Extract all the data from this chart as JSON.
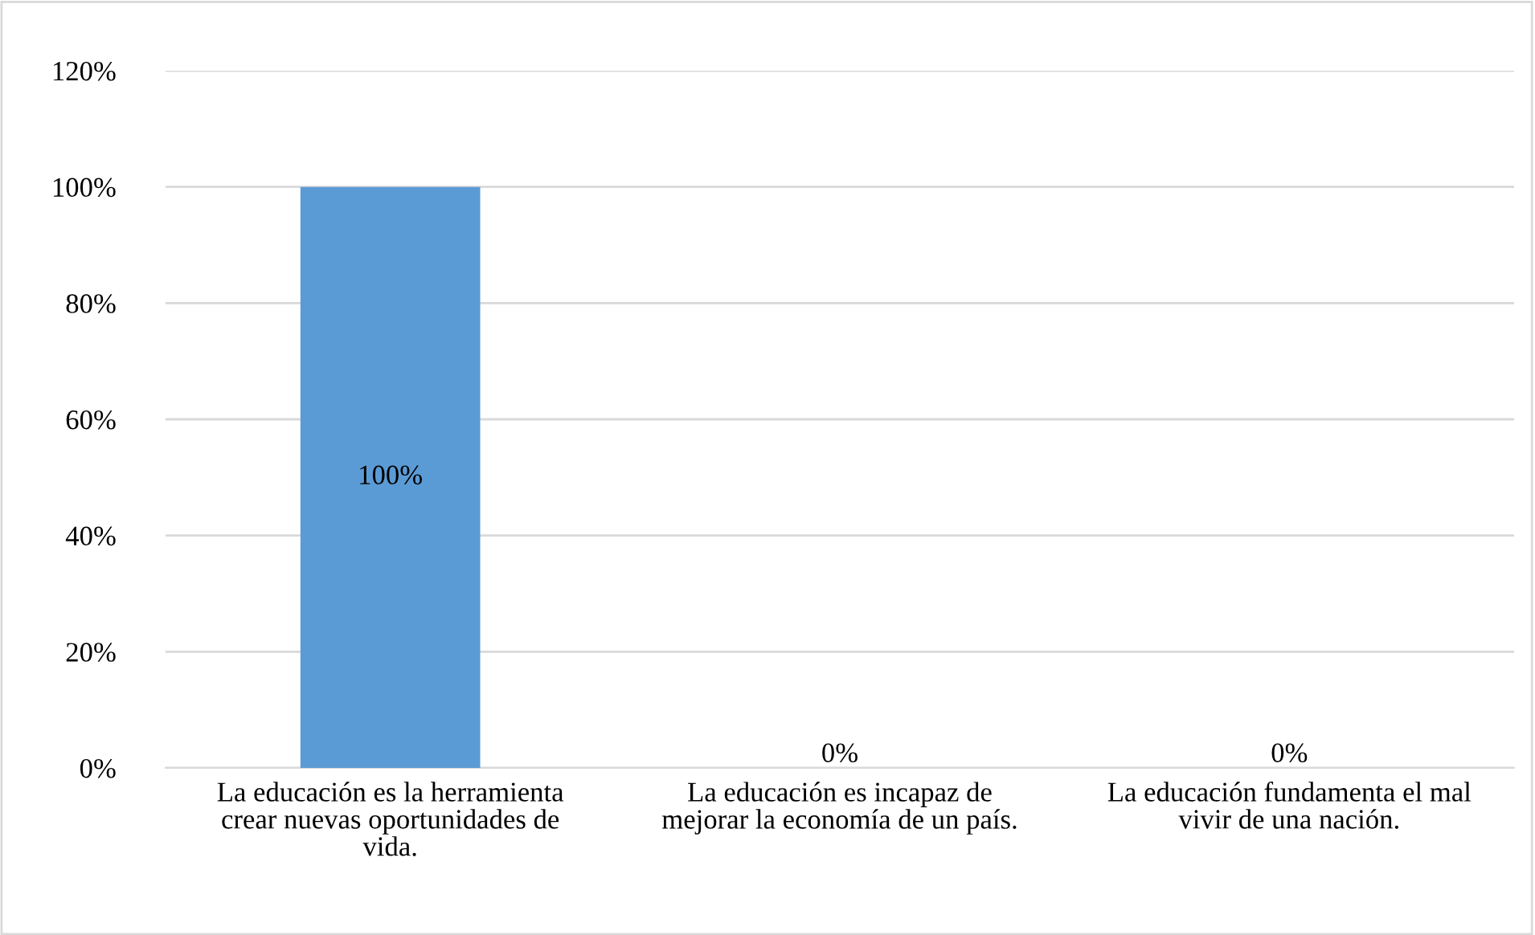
{
  "chart_data": {
    "type": "bar",
    "categories": [
      "La educación es la herramienta crear nuevas oportunidades de vida.",
      "La educación es incapaz de mejorar la economía de un país.",
      "La educación fundamenta el mal vivir de una nación."
    ],
    "values": [
      100,
      0,
      0
    ],
    "value_labels": [
      "100%",
      "0%",
      "0%"
    ],
    "color": "#5b9bd5",
    "ylim": [
      0,
      120
    ],
    "yticks": [
      {
        "value": 0,
        "label": "0%"
      },
      {
        "value": 20,
        "label": "20%"
      },
      {
        "value": 40,
        "label": "40%"
      },
      {
        "value": 60,
        "label": "60%"
      },
      {
        "value": 80,
        "label": "80%"
      },
      {
        "value": 100,
        "label": "100%"
      },
      {
        "value": 120,
        "label": "120%"
      }
    ],
    "grid": "y"
  }
}
